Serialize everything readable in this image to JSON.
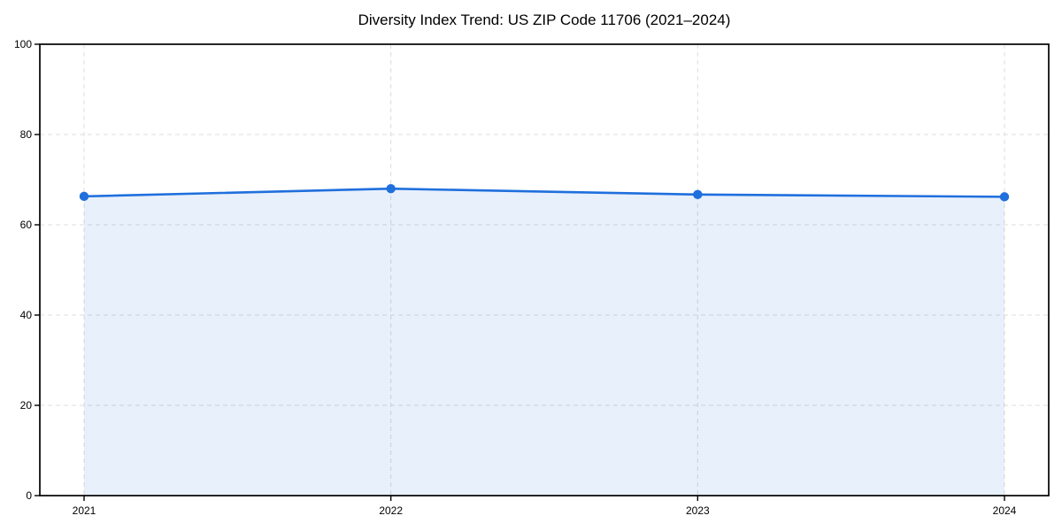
{
  "chart_data": {
    "type": "area",
    "title": "Diversity Index Trend: US ZIP Code 11706 (2021–2024)",
    "categories": [
      "2021",
      "2022",
      "2023",
      "2024"
    ],
    "values": [
      66.3,
      68.0,
      66.7,
      66.2
    ],
    "series_name": "Diversity Index",
    "xlabel": "",
    "ylabel": "",
    "ylim": [
      0,
      100
    ],
    "yticks": [
      0,
      20,
      40,
      60,
      80,
      100
    ],
    "grid": true,
    "grid_style": "dashed",
    "legend": "none",
    "colors": {
      "line": "#1f6fdd",
      "fill": "#1f6fdd",
      "fill_opacity": 0.1,
      "grid": "#dcdcdc",
      "spine": "#000000",
      "text": "#000000",
      "background": "#ffffff"
    }
  }
}
